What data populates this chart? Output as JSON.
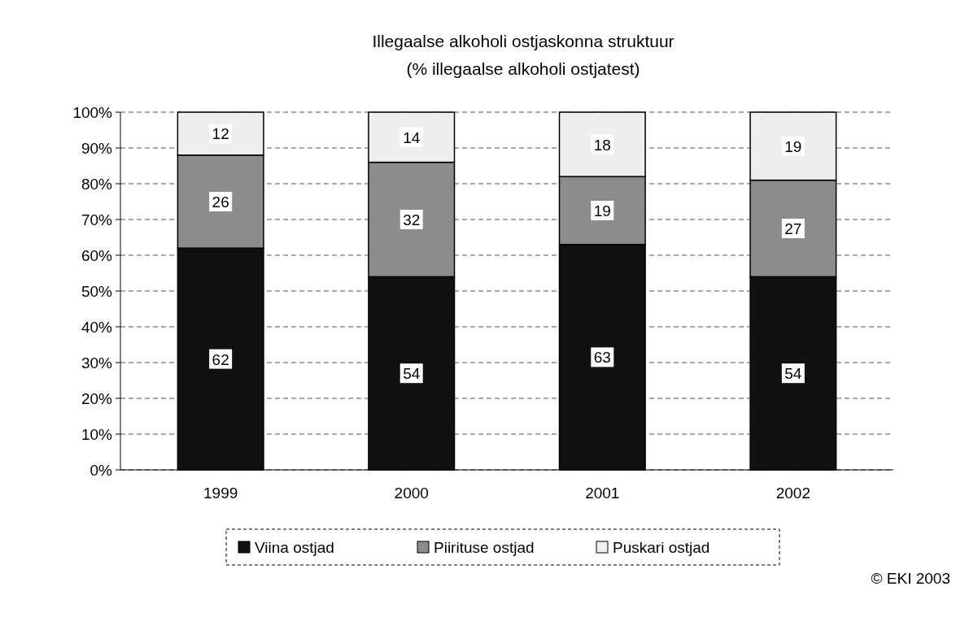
{
  "chart_data": {
    "type": "bar",
    "title": "Illegaalse alkoholi ostjaskonna struktuur",
    "subtitle": "(% illegaalse alkoholi ostjatest)",
    "categories": [
      "1999",
      "2000",
      "2001",
      "2002"
    ],
    "stacked": true,
    "data_labels": true,
    "grid": "y",
    "legend": "bottom",
    "annotations": [
      "© EKI 2003"
    ],
    "ylim": [
      0,
      100
    ],
    "yticks": [
      {
        "value": 0,
        "label": "0%"
      },
      {
        "value": 10,
        "label": "10%"
      },
      {
        "value": 20,
        "label": "20%"
      },
      {
        "value": 30,
        "label": "30%"
      },
      {
        "value": 40,
        "label": "40%"
      },
      {
        "value": 50,
        "label": "50%"
      },
      {
        "value": 60,
        "label": "60%"
      },
      {
        "value": 70,
        "label": "70%"
      },
      {
        "value": 80,
        "label": "80%"
      },
      {
        "value": 90,
        "label": "90%"
      },
      {
        "value": 100,
        "label": "100%"
      }
    ],
    "series": [
      {
        "name": "Viina ostjad",
        "color": "#111111",
        "values": [
          62,
          54,
          63,
          54
        ]
      },
      {
        "name": "Piirituse ostjad",
        "color": "#8c8c8c",
        "values": [
          26,
          32,
          19,
          27
        ]
      },
      {
        "name": "Puskari ostjad",
        "color": "#eeeeee",
        "values": [
          12,
          14,
          18,
          19
        ]
      }
    ]
  }
}
